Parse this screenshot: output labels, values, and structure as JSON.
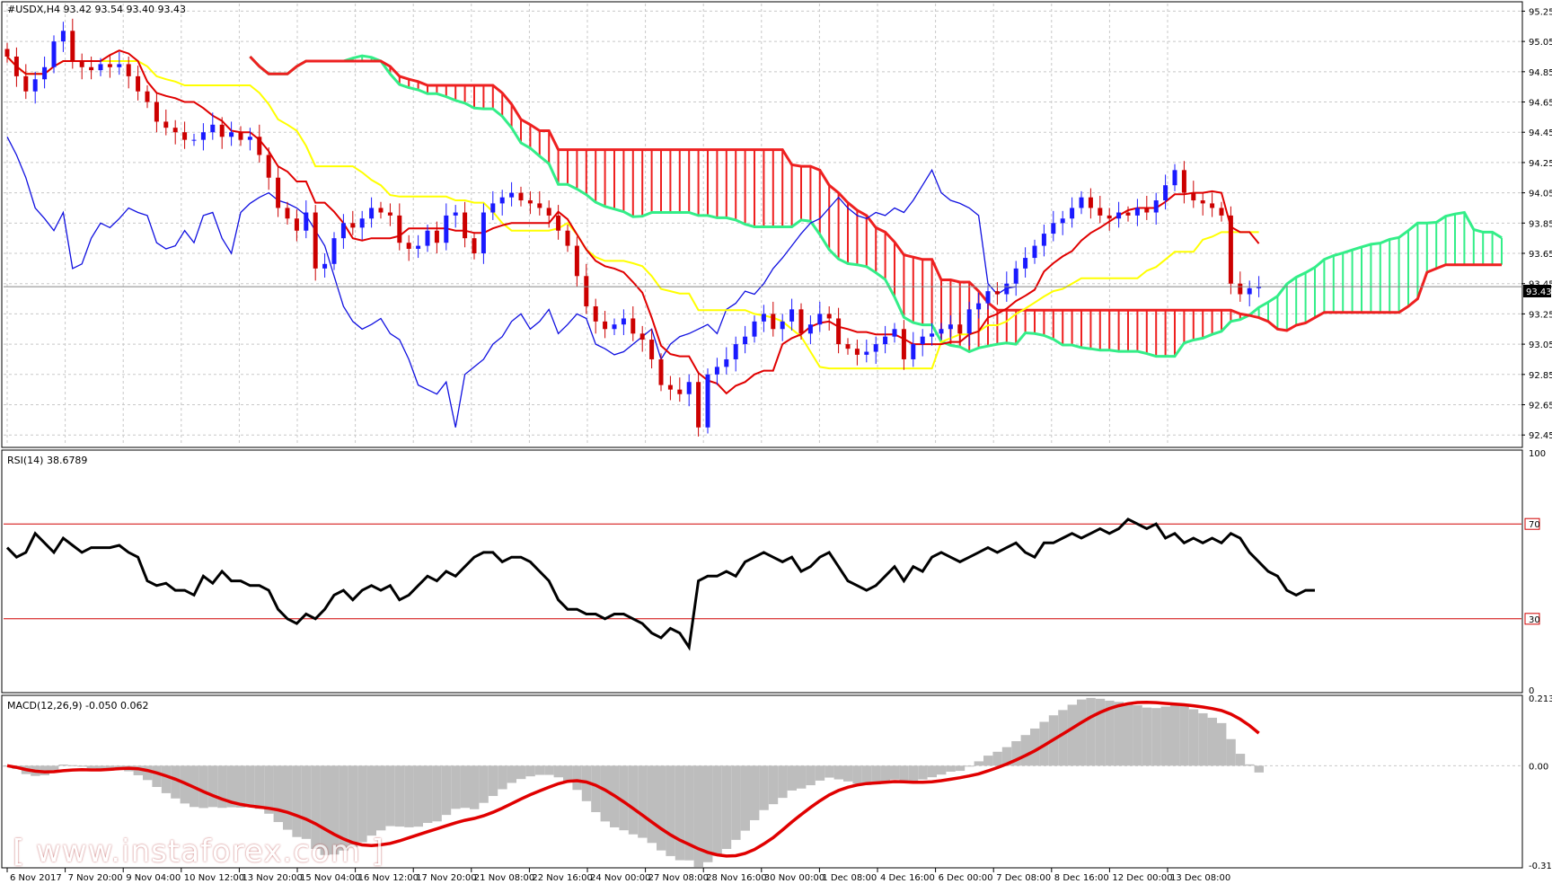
{
  "main_title": "#USDX,H4  93.42 93.54 93.40 93.43",
  "current_price_label": "93.43",
  "rsi_title": "RSI(14) 38.6789",
  "macd_title": "MACD(12,26,9) -0.050 0.062",
  "watermark": "[ www.instaforex.com ]",
  "colors": {
    "bull_candle": "#1a1aff",
    "bear_candle": "#cc0000",
    "tenkan": "#e00000",
    "kijun": "#ffff00",
    "chikou": "#1010e0",
    "kumo_bull": "#33ee88",
    "kumo_bear": "#ee2020",
    "rsi": "#000000",
    "macd_hist": "#bdbdbd",
    "macd_signal": "#e00000",
    "grid": "#c8c8c8"
  },
  "chart_data": [
    {
      "type": "candlestick",
      "name": "#USDX,H4",
      "ohlc_last": {
        "open": 93.42,
        "high": 93.54,
        "low": 93.4,
        "close": 93.43
      },
      "ylim": [
        92.38,
        95.3
      ],
      "y_ticks": [
        "95.25",
        "95.05",
        "94.85",
        "94.65",
        "94.45",
        "94.25",
        "94.05",
        "93.85",
        "93.65",
        "93.45",
        "93.25",
        "93.05",
        "92.85",
        "92.65",
        "92.45"
      ],
      "x_ticks": [
        "6 Nov 2017",
        "7 Nov 20:00",
        "9 Nov 04:00",
        "10 Nov 12:00",
        "13 Nov 20:00",
        "15 Nov 04:00",
        "16 Nov 12:00",
        "17 Nov 20:00",
        "21 Nov 08:00",
        "22 Nov 16:00",
        "24 Nov 00:00",
        "27 Nov 08:00",
        "28 Nov 16:00",
        "30 Nov 00:00",
        "1 Dec 08:00",
        "4 Dec 16:00",
        "6 Dec 00:00",
        "7 Dec 08:00",
        "8 Dec 16:00",
        "12 Dec 00:00",
        "13 Dec 08:00"
      ],
      "close_series": [
        94.95,
        94.82,
        94.72,
        94.8,
        94.88,
        95.05,
        95.12,
        94.92,
        94.88,
        94.86,
        94.9,
        94.88,
        94.9,
        94.82,
        94.72,
        94.65,
        94.52,
        94.48,
        94.45,
        94.4,
        94.4,
        94.45,
        94.5,
        94.42,
        94.45,
        94.4,
        94.42,
        94.3,
        94.15,
        93.95,
        93.88,
        93.8,
        93.92,
        93.55,
        93.58,
        93.75,
        93.85,
        93.82,
        93.88,
        93.95,
        93.92,
        93.9,
        93.72,
        93.68,
        93.7,
        93.8,
        93.72,
        93.9,
        93.92,
        93.75,
        93.65,
        93.92,
        93.98,
        94.02,
        94.05,
        94.0,
        93.98,
        93.95,
        93.9,
        93.8,
        93.7,
        93.5,
        93.3,
        93.2,
        93.15,
        93.18,
        93.22,
        93.12,
        93.08,
        92.95,
        92.78,
        92.75,
        92.72,
        92.8,
        92.5,
        92.85,
        92.9,
        92.95,
        93.05,
        93.1,
        93.2,
        93.25,
        93.15,
        93.2,
        93.28,
        93.12,
        93.18,
        93.25,
        93.22,
        93.05,
        93.02,
        92.98,
        93.0,
        93.05,
        93.1,
        93.15,
        92.95,
        93.05,
        93.1,
        93.12,
        93.15,
        93.18,
        93.12,
        93.28,
        93.32,
        93.4,
        93.38,
        93.45,
        93.55,
        93.62,
        93.7,
        93.78,
        93.85,
        93.88,
        93.95,
        94.02,
        93.95,
        93.9,
        93.88,
        93.92,
        93.9,
        93.95,
        93.92,
        94.0,
        94.1,
        94.2,
        94.05,
        94.0,
        93.98,
        93.95,
        93.9,
        93.45,
        93.38,
        93.42,
        93.43
      ],
      "rsi": {
        "name": "RSI(14)",
        "value": 38.6789,
        "levels": [
          70,
          30
        ],
        "ylim": [
          0,
          100
        ],
        "y_ticks": [
          "100",
          "70",
          "30",
          "0"
        ],
        "values": [
          60,
          56,
          58,
          66,
          62,
          58,
          64,
          61,
          58,
          60,
          60,
          60,
          61,
          58,
          56,
          46,
          44,
          45,
          42,
          42,
          40,
          48,
          45,
          50,
          46,
          46,
          44,
          44,
          42,
          34,
          30,
          28,
          32,
          30,
          34,
          40,
          42,
          38,
          42,
          44,
          42,
          44,
          38,
          40,
          44,
          48,
          46,
          50,
          48,
          52,
          56,
          58,
          58,
          54,
          56,
          56,
          54,
          50,
          46,
          38,
          34,
          34,
          32,
          32,
          30,
          32,
          32,
          30,
          28,
          24,
          22,
          26,
          24,
          18,
          46,
          48,
          48,
          50,
          48,
          54,
          56,
          58,
          56,
          54,
          56,
          50,
          52,
          56,
          58,
          52,
          46,
          44,
          42,
          44,
          48,
          52,
          46,
          52,
          50,
          56,
          58,
          56,
          54,
          56,
          58,
          60,
          58,
          60,
          62,
          58,
          56,
          62,
          62,
          64,
          66,
          64,
          66,
          68,
          66,
          68,
          72,
          70,
          68,
          70,
          64,
          66,
          62,
          64,
          62,
          64,
          62,
          66,
          64,
          58,
          54,
          50,
          48,
          42,
          40,
          42,
          42
        ]
      },
      "macd": {
        "name": "MACD(12,26,9)",
        "value": -0.05,
        "signal": 0.062,
        "ylim": [
          -0.313,
          0.213
        ],
        "y_ticks": [
          "0.213",
          "0.00",
          "-0.313"
        ]
      }
    }
  ]
}
